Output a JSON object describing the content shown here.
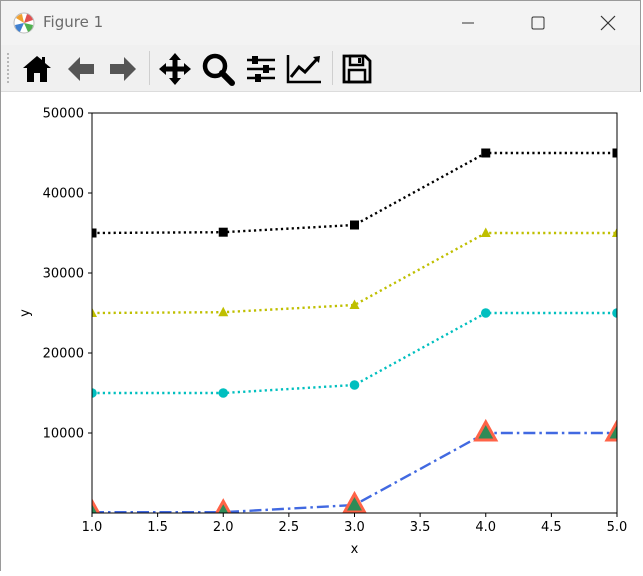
{
  "window": {
    "title": "Figure 1"
  },
  "toolbar": {
    "buttons": [
      {
        "name": "home",
        "icon": "home-icon"
      },
      {
        "name": "back",
        "icon": "back-arrow-icon"
      },
      {
        "name": "forward",
        "icon": "forward-arrow-icon"
      },
      {
        "name": "pan",
        "icon": "move-icon"
      },
      {
        "name": "zoom",
        "icon": "zoom-icon"
      },
      {
        "name": "subplots",
        "icon": "sliders-icon"
      },
      {
        "name": "customize",
        "icon": "axes-edit-icon"
      },
      {
        "name": "save",
        "icon": "save-icon"
      }
    ]
  },
  "chart_data": {
    "type": "line",
    "title": "",
    "xlabel": "x",
    "ylabel": "y",
    "xlim": [
      1.0,
      5.0
    ],
    "ylim": [
      0,
      50000
    ],
    "x_ticks": [
      "1.0",
      "1.5",
      "2.0",
      "2.5",
      "3.0",
      "3.5",
      "4.0",
      "4.5",
      "5.0"
    ],
    "y_ticks": [
      "10000",
      "20000",
      "30000",
      "40000",
      "50000"
    ],
    "grid": false,
    "x": [
      1,
      2,
      3,
      4,
      5
    ],
    "series": [
      {
        "values": [
          35000,
          35100,
          36000,
          45000,
          45000
        ],
        "color": "#000000",
        "marker": "square",
        "linestyle": "dotted"
      },
      {
        "values": [
          25000,
          25100,
          26000,
          35000,
          35000
        ],
        "color": "#bfbf00",
        "marker": "triangle",
        "linestyle": "dotted"
      },
      {
        "values": [
          15000,
          15000,
          16000,
          25000,
          25000
        ],
        "color": "#00bfbf",
        "marker": "circle",
        "linestyle": "dotted"
      },
      {
        "values": [
          100,
          100,
          1000,
          10000,
          10000
        ],
        "color": "#4169e1",
        "marker": "big-triangle",
        "marker_edge": "#ff6347",
        "marker_fill": "#2e8b57",
        "linestyle": "dashdot"
      }
    ]
  }
}
